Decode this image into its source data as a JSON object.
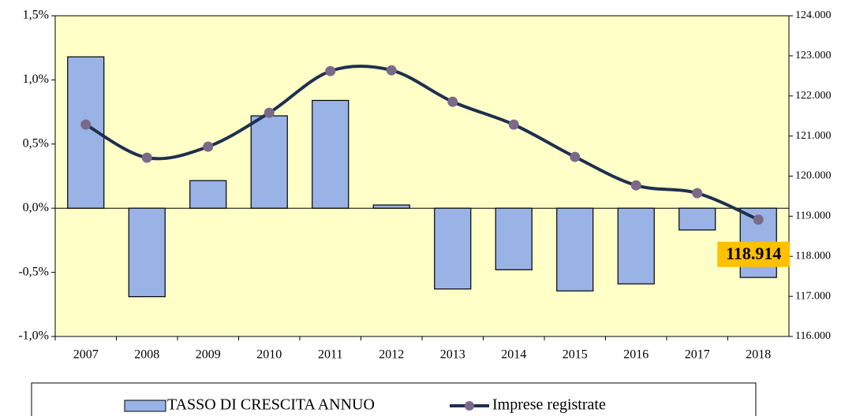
{
  "chart_data": {
    "type": "bar_line",
    "categories": [
      "2007",
      "2008",
      "2009",
      "2010",
      "2011",
      "2012",
      "2013",
      "2014",
      "2015",
      "2016",
      "2017",
      "2018"
    ],
    "series": [
      {
        "name": "TASSO DI CRESCITA ANNUO",
        "type": "bar",
        "color": "#99b3e6",
        "values": [
          1.18,
          -0.69,
          0.215,
          0.72,
          0.84,
          0.025,
          -0.63,
          -0.48,
          -0.645,
          -0.59,
          -0.17,
          -0.54
        ]
      },
      {
        "name": "Imprese registrate",
        "type": "line",
        "axis": "y2",
        "color": "#1f2f4f",
        "marker_color": "#7a6a8a",
        "values": [
          121285,
          120460,
          120735,
          121580,
          122620,
          122640,
          121855,
          121285,
          120480,
          119770,
          119575,
          118914
        ],
        "value_labels": [
          null,
          null,
          null,
          null,
          null,
          null,
          null,
          null,
          null,
          null,
          null,
          "118.914"
        ]
      }
    ],
    "ylim": [
      -1.0,
      1.5
    ],
    "yticks": [
      {
        "value": -1.0,
        "label": "-1,0%"
      },
      {
        "value": -0.5,
        "label": "-0,5%"
      },
      {
        "value": 0,
        "label": "0,0%"
      },
      {
        "value": 0.5,
        "label": "0,5%"
      },
      {
        "value": 1.0,
        "label": "1,0%"
      },
      {
        "value": 1.5,
        "label": "1,5%"
      }
    ],
    "y2lim": [
      116000,
      124000
    ],
    "y2ticks": [
      {
        "value": 116000,
        "label": "116.000"
      },
      {
        "value": 117000,
        "label": "117.000"
      },
      {
        "value": 118000,
        "label": "118.000"
      },
      {
        "value": 119000,
        "label": "119.000"
      },
      {
        "value": 120000,
        "label": "120.000"
      },
      {
        "value": 121000,
        "label": "121.000"
      },
      {
        "value": 122000,
        "label": "122.000"
      },
      {
        "value": 123000,
        "label": "123.000"
      },
      {
        "value": 124000,
        "label": "124.000"
      }
    ],
    "legend": "bottom",
    "plot_background": "#ffffc8"
  }
}
